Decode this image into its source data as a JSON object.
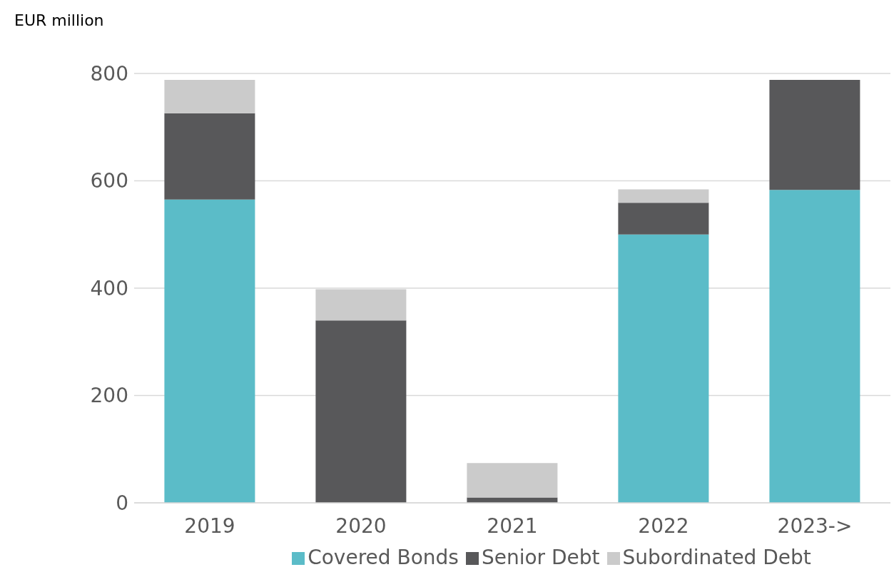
{
  "chart_data": {
    "type": "bar",
    "ylabel": "EUR million",
    "categories": [
      "2019",
      "2020",
      "2021",
      "2022",
      "2023->"
    ],
    "stacked": true,
    "series": [
      {
        "name": "Covered Bonds",
        "color": "#5bbcc8",
        "values": [
          565,
          0,
          0,
          500,
          583
        ]
      },
      {
        "name": "Senior Debt",
        "color": "#58585a",
        "values": [
          161,
          340,
          10,
          59,
          205
        ]
      },
      {
        "name": "Subordinated Debt",
        "color": "#cbcbcb",
        "values": [
          62,
          58,
          64,
          25,
          0
        ]
      }
    ],
    "ylim": [
      0,
      800
    ],
    "yticks": [
      0,
      200,
      400,
      600,
      800
    ],
    "grid": "y",
    "legend": "bottom"
  }
}
